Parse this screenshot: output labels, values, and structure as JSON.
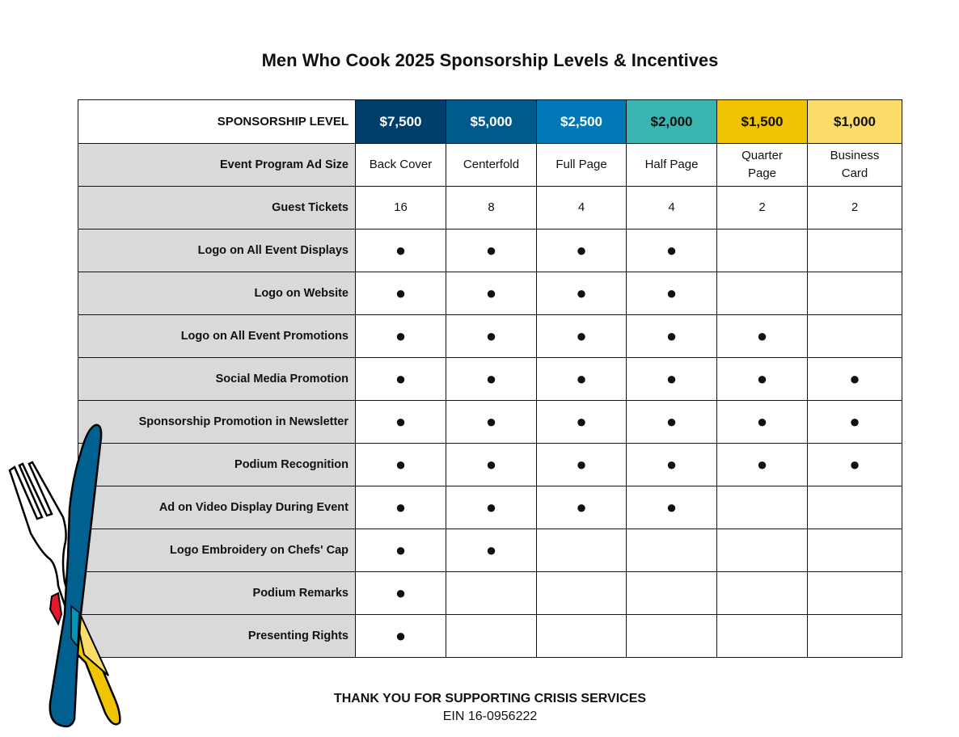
{
  "title": "Men Who Cook 2025 Sponsorship Levels & Incentives",
  "header_label": "SPONSORSHIP LEVEL",
  "levels": [
    {
      "amount": "$7,500",
      "color": "#003f6b",
      "text_color": "#ffffff"
    },
    {
      "amount": "$5,000",
      "color": "#005a8c",
      "text_color": "#ffffff"
    },
    {
      "amount": "$2,500",
      "color": "#0077b6",
      "text_color": "#ffffff"
    },
    {
      "amount": "$2,000",
      "color": "#3ab5b2",
      "text_color": "#111111"
    },
    {
      "amount": "$1,500",
      "color": "#f0c400",
      "text_color": "#111111"
    },
    {
      "amount": "$1,000",
      "color": "#fbdc6a",
      "text_color": "#111111"
    }
  ],
  "rows": [
    {
      "label": "Event Program Ad Size",
      "cells": [
        "Back Cover",
        "Centerfold",
        "Full Page",
        "Half Page",
        "Quarter Page",
        "Business Card"
      ]
    },
    {
      "label": "Guest Tickets",
      "cells": [
        "16",
        "8",
        "4",
        "4",
        "2",
        "2"
      ]
    },
    {
      "label": "Logo on All Event Displays",
      "cells": [
        "●",
        "●",
        "●",
        "●",
        "",
        ""
      ]
    },
    {
      "label": "Logo on Website",
      "cells": [
        "●",
        "●",
        "●",
        "●",
        "",
        ""
      ]
    },
    {
      "label": "Logo on All Event Promotions",
      "cells": [
        "●",
        "●",
        "●",
        "●",
        "●",
        ""
      ]
    },
    {
      "label": "Social Media Promotion",
      "cells": [
        "●",
        "●",
        "●",
        "●",
        "●",
        "●"
      ]
    },
    {
      "label": "Sponsorship Promotion in Newsletter",
      "cells": [
        "●",
        "●",
        "●",
        "●",
        "●",
        "●"
      ]
    },
    {
      "label": "Podium Recognition",
      "cells": [
        "●",
        "●",
        "●",
        "●",
        "●",
        "●"
      ]
    },
    {
      "label": "Ad on Video Display During Event",
      "cells": [
        "●",
        "●",
        "●",
        "●",
        "",
        ""
      ]
    },
    {
      "label": "Logo Embroidery on Chefs' Cap",
      "cells": [
        "●",
        "●",
        "",
        "",
        "",
        ""
      ]
    },
    {
      "label": "Podium Remarks",
      "cells": [
        "●",
        "",
        "",
        "",
        "",
        ""
      ]
    },
    {
      "label": "Presenting Rights",
      "cells": [
        "●",
        "",
        "",
        "",
        "",
        ""
      ]
    }
  ],
  "footer": {
    "thanks": "THANK YOU FOR SUPPORTING CRISIS SERVICES",
    "ein": "EIN 16-0956222"
  }
}
